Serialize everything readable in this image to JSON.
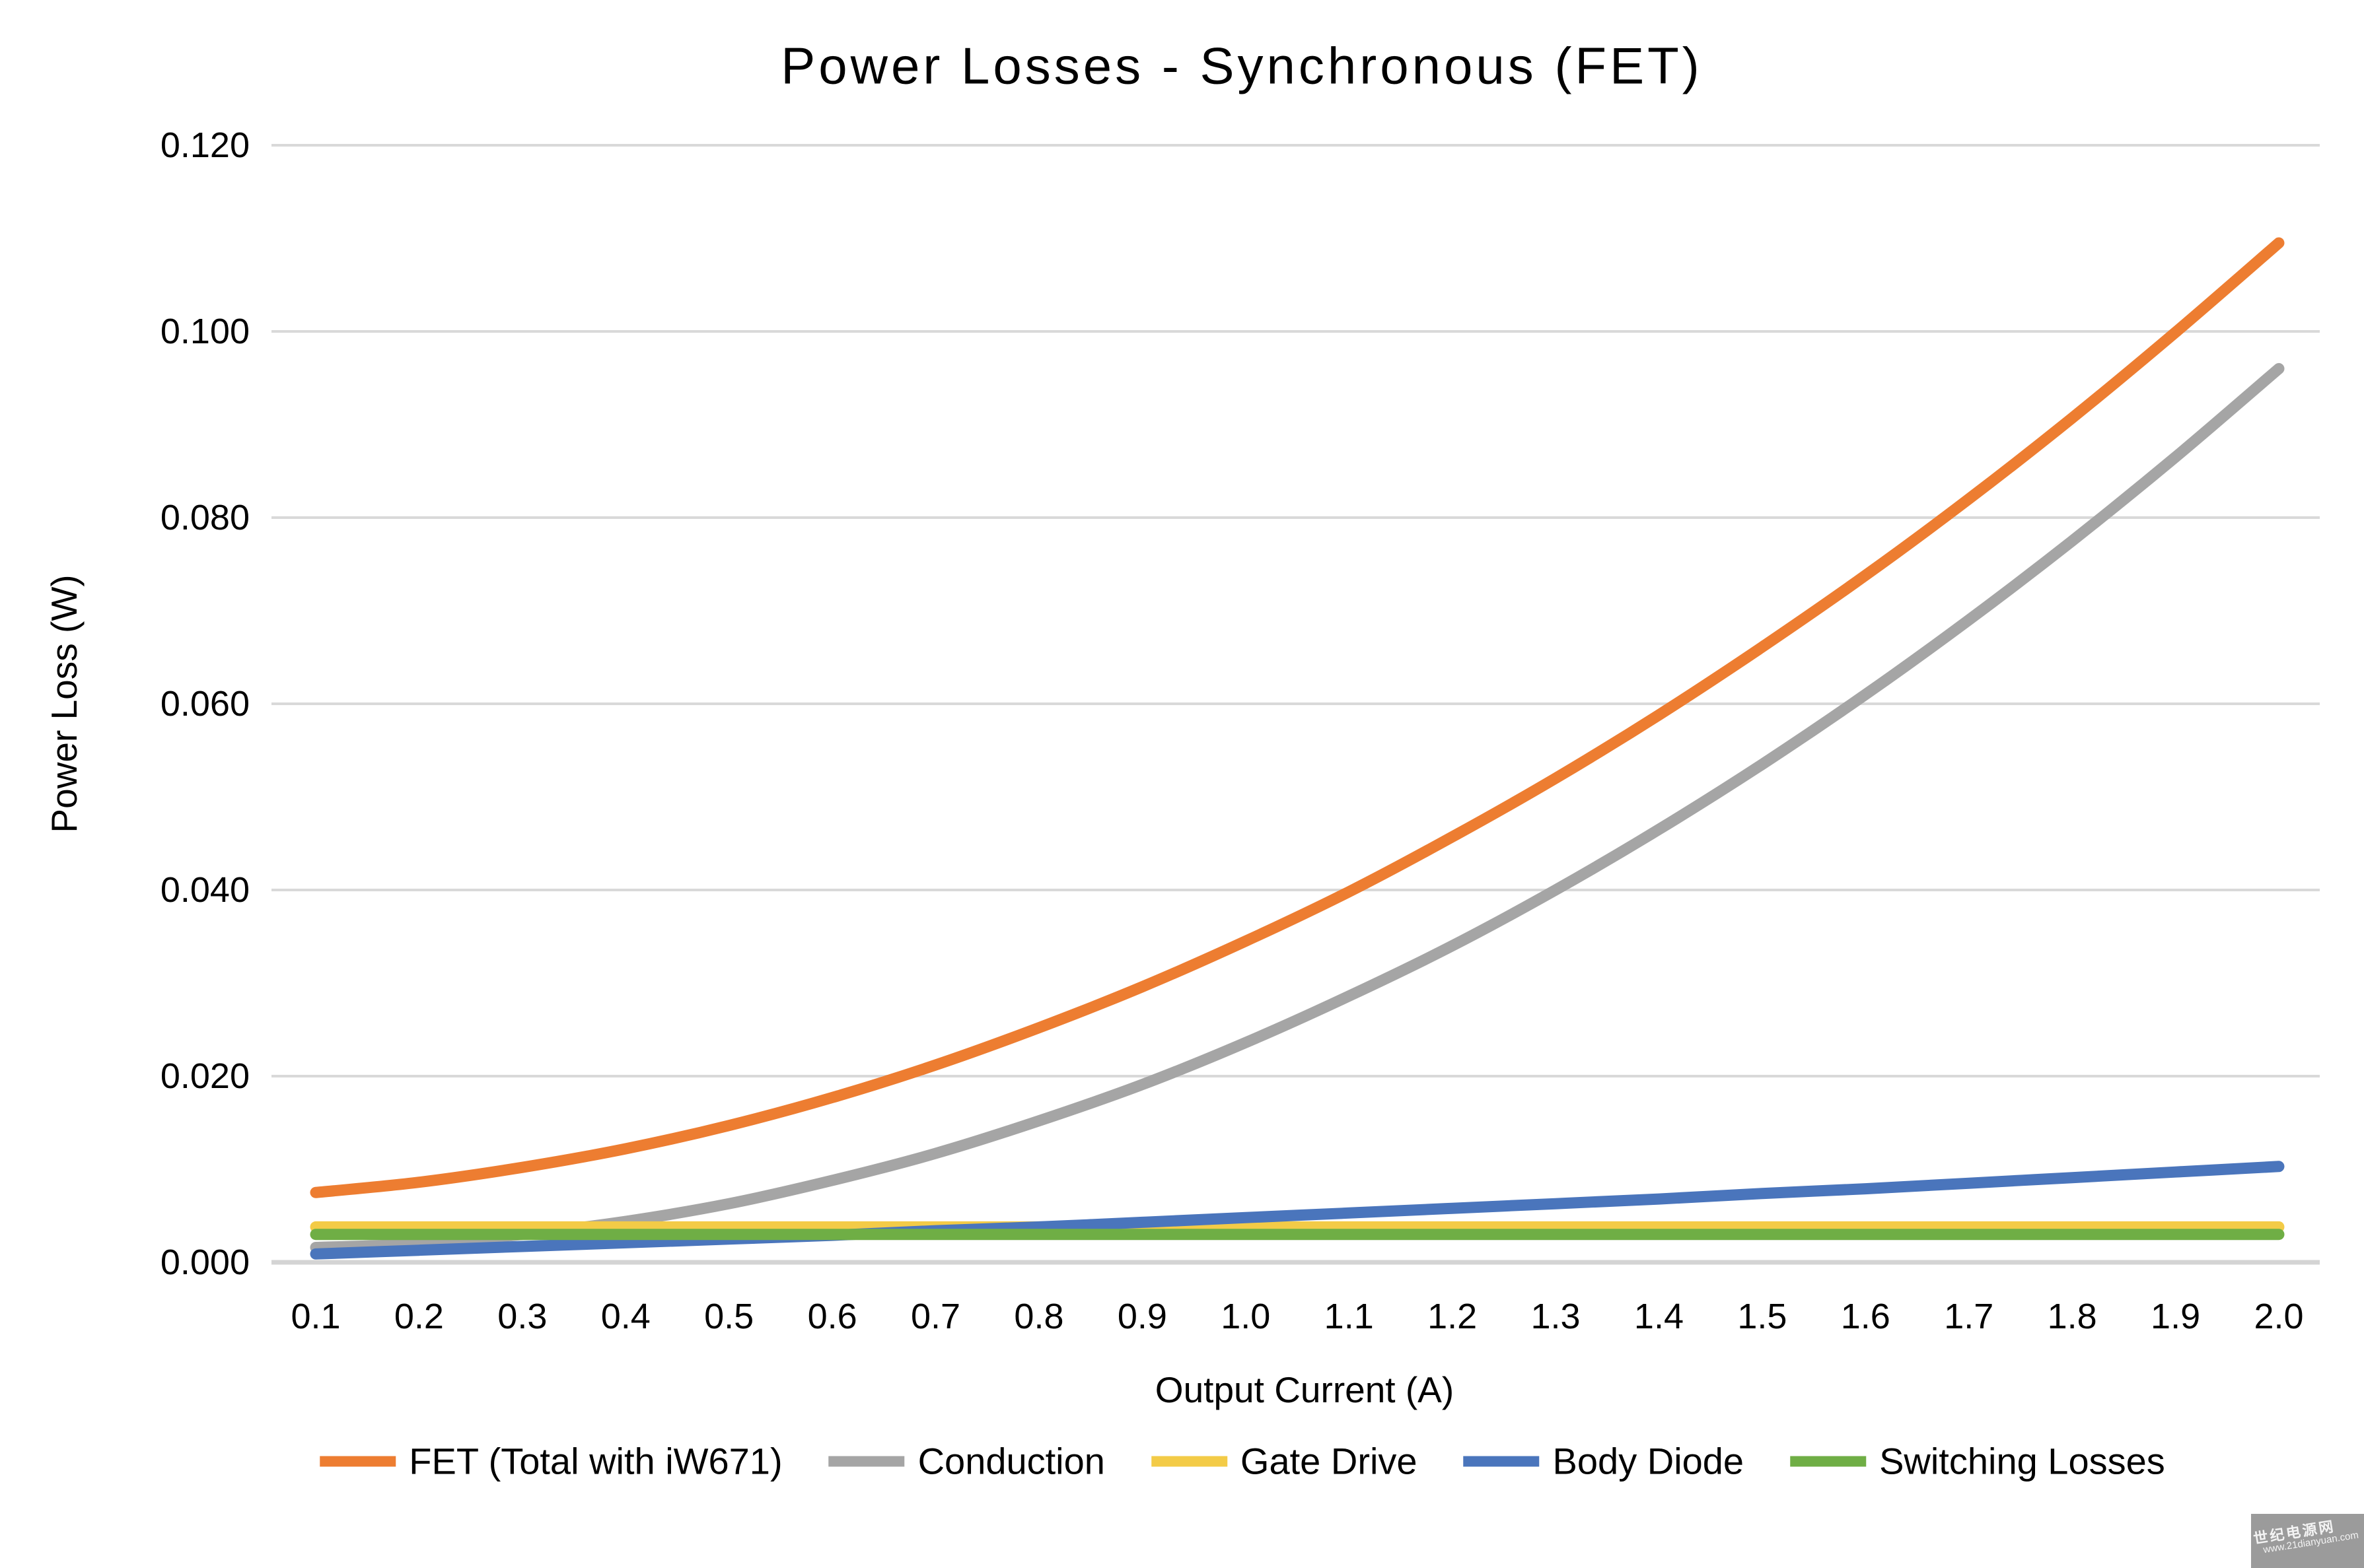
{
  "watermark": {
    "line1": "世纪电源网",
    "line2": "www.21dianyuan.com"
  },
  "chart_data": {
    "type": "line",
    "title": "Power Losses - Synchronous (FET)",
    "xlabel": "Output Current (A)",
    "ylabel": "Power Loss (W)",
    "x": [
      0.1,
      0.2,
      0.3,
      0.4,
      0.5,
      0.6,
      0.7,
      0.8,
      0.9,
      1.0,
      1.1,
      1.2,
      1.3,
      1.4,
      1.5,
      1.6,
      1.7,
      1.8,
      1.9,
      2.0
    ],
    "x_tick_labels": [
      "0.1",
      "0.2",
      "0.3",
      "0.4",
      "0.5",
      "0.6",
      "0.7",
      "0.8",
      "0.9",
      "1.0",
      "1.1",
      "1.2",
      "1.3",
      "1.4",
      "1.5",
      "1.6",
      "1.7",
      "1.8",
      "1.9",
      "2.0"
    ],
    "y_ticks": [
      0.0,
      0.02,
      0.04,
      0.06,
      0.08,
      0.1,
      0.12
    ],
    "y_tick_labels": [
      "0.000",
      "0.020",
      "0.040",
      "0.060",
      "0.080",
      "0.100",
      "0.120"
    ],
    "ylim": [
      0,
      0.12
    ],
    "grid": "horizontal-only",
    "legend_position": "bottom",
    "background": "#ffffff",
    "gridline_color": "#d9d9d9",
    "axis_line_color": "#d4d4d4",
    "series": [
      {
        "name": "FET (Total with iW671)",
        "slug": "fet-total-with-iw671",
        "color": "#ED7D31",
        "values": [
          0.0075,
          0.0086,
          0.0102,
          0.0122,
          0.0147,
          0.0177,
          0.0212,
          0.0252,
          0.0296,
          0.0345,
          0.0398,
          0.0457,
          0.052,
          0.0588,
          0.0661,
          0.0738,
          0.082,
          0.0907,
          0.0999,
          0.1095
        ]
      },
      {
        "name": "Conduction",
        "slug": "conduction",
        "color": "#A5A5A5",
        "values": [
          0.0016,
          0.002,
          0.003,
          0.0044,
          0.0063,
          0.0088,
          0.0117,
          0.0152,
          0.0191,
          0.0236,
          0.0286,
          0.034,
          0.04,
          0.0465,
          0.0535,
          0.061,
          0.069,
          0.0775,
          0.0865,
          0.096
        ]
      },
      {
        "name": "Gate Drive",
        "slug": "gate-drive",
        "color": "#F3CB47",
        "values": [
          0.0038,
          0.0038,
          0.0038,
          0.0038,
          0.0038,
          0.0038,
          0.0038,
          0.0038,
          0.0038,
          0.0038,
          0.0038,
          0.0038,
          0.0038,
          0.0038,
          0.0038,
          0.0038,
          0.0038,
          0.0038,
          0.0038,
          0.0038
        ]
      },
      {
        "name": "Body Diode",
        "slug": "body-diode",
        "color": "#4A75BC",
        "values": [
          0.0009,
          0.0013,
          0.0017,
          0.0021,
          0.0025,
          0.0029,
          0.0034,
          0.0038,
          0.0043,
          0.0048,
          0.0053,
          0.0058,
          0.0063,
          0.0068,
          0.0074,
          0.0079,
          0.0085,
          0.0091,
          0.0097,
          0.0103
        ]
      },
      {
        "name": "Switching Losses",
        "slug": "switching-losses",
        "color": "#6FAE45",
        "values": [
          0.003,
          0.003,
          0.003,
          0.003,
          0.003,
          0.003,
          0.003,
          0.003,
          0.003,
          0.003,
          0.003,
          0.003,
          0.003,
          0.003,
          0.003,
          0.003,
          0.003,
          0.003,
          0.003,
          0.003
        ]
      }
    ]
  }
}
